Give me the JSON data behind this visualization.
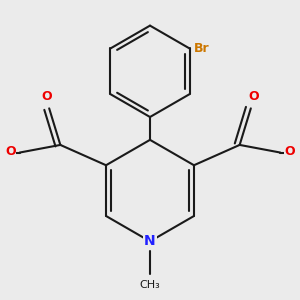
{
  "bg_color": "#ebebeb",
  "bond_color": "#1a1a1a",
  "N_color": "#2020ff",
  "O_color": "#ee0000",
  "Br_color": "#cc7700",
  "lw": 1.5,
  "figsize": [
    3.0,
    3.0
  ],
  "dpi": 100,
  "xlim": [
    -2.8,
    2.8
  ],
  "ylim": [
    -2.6,
    3.2
  ]
}
